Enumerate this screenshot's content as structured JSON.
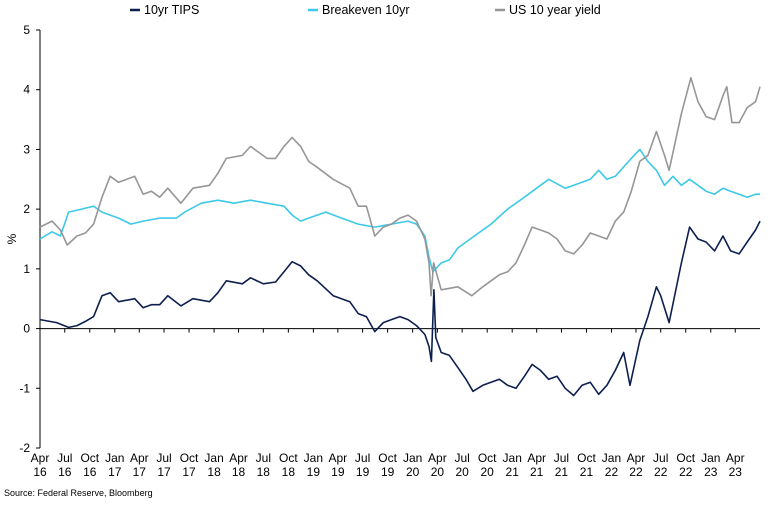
{
  "source": "Source: Federal Reserve, Bloomberg",
  "chart_data": {
    "type": "line",
    "ylabel": "%",
    "ylim": [
      -2,
      5
    ],
    "yticks": [
      -2,
      -1,
      0,
      1,
      2,
      3,
      4,
      5
    ],
    "xlim": [
      "2016-04-01",
      "2023-07-01"
    ],
    "grid": false,
    "legend": "top",
    "x_ticks": [
      {
        "month": "Apr",
        "year": "16",
        "date": "2016-04-01"
      },
      {
        "month": "Jul",
        "year": "16",
        "date": "2016-07-01"
      },
      {
        "month": "Oct",
        "year": "16",
        "date": "2016-10-01"
      },
      {
        "month": "Jan",
        "year": "17",
        "date": "2017-01-01"
      },
      {
        "month": "Apr",
        "year": "17",
        "date": "2017-04-01"
      },
      {
        "month": "Jul",
        "year": "17",
        "date": "2017-07-01"
      },
      {
        "month": "Oct",
        "year": "17",
        "date": "2017-10-01"
      },
      {
        "month": "Jan",
        "year": "18",
        "date": "2018-01-01"
      },
      {
        "month": "Apr",
        "year": "18",
        "date": "2018-04-01"
      },
      {
        "month": "Jul",
        "year": "18",
        "date": "2018-07-01"
      },
      {
        "month": "Oct",
        "year": "18",
        "date": "2018-10-01"
      },
      {
        "month": "Jan",
        "year": "19",
        "date": "2019-01-01"
      },
      {
        "month": "Apr",
        "year": "19",
        "date": "2019-04-01"
      },
      {
        "month": "Jul",
        "year": "19",
        "date": "2019-07-01"
      },
      {
        "month": "Oct",
        "year": "19",
        "date": "2019-10-01"
      },
      {
        "month": "Jan",
        "year": "20",
        "date": "2020-01-01"
      },
      {
        "month": "Apr",
        "year": "20",
        "date": "2020-04-01"
      },
      {
        "month": "Jul",
        "year": "20",
        "date": "2020-07-01"
      },
      {
        "month": "Oct",
        "year": "20",
        "date": "2020-10-01"
      },
      {
        "month": "Jan",
        "year": "21",
        "date": "2021-01-01"
      },
      {
        "month": "Apr",
        "year": "21",
        "date": "2021-04-01"
      },
      {
        "month": "Jul",
        "year": "21",
        "date": "2021-07-01"
      },
      {
        "month": "Oct",
        "year": "21",
        "date": "2021-10-01"
      },
      {
        "month": "Jan",
        "year": "22",
        "date": "2022-01-01"
      },
      {
        "month": "Apr",
        "year": "22",
        "date": "2022-04-01"
      },
      {
        "month": "Jul",
        "year": "22",
        "date": "2022-07-01"
      },
      {
        "month": "Oct",
        "year": "22",
        "date": "2022-10-01"
      },
      {
        "month": "Jan",
        "year": "23",
        "date": "2023-01-01"
      },
      {
        "month": "Apr",
        "year": "23",
        "date": "2023-04-01"
      }
    ],
    "series": [
      {
        "name": "10yr TIPS",
        "color": "#0d1f4f",
        "points": [
          [
            "2016-04-01",
            0.15
          ],
          [
            "2016-06-01",
            0.1
          ],
          [
            "2016-07-15",
            0.02
          ],
          [
            "2016-08-15",
            0.05
          ],
          [
            "2016-09-15",
            0.12
          ],
          [
            "2016-10-15",
            0.2
          ],
          [
            "2016-11-15",
            0.55
          ],
          [
            "2016-12-15",
            0.6
          ],
          [
            "2017-01-15",
            0.45
          ],
          [
            "2017-03-15",
            0.5
          ],
          [
            "2017-04-15",
            0.35
          ],
          [
            "2017-05-15",
            0.4
          ],
          [
            "2017-06-15",
            0.4
          ],
          [
            "2017-07-15",
            0.55
          ],
          [
            "2017-09-01",
            0.38
          ],
          [
            "2017-10-15",
            0.5
          ],
          [
            "2017-12-15",
            0.45
          ],
          [
            "2018-01-15",
            0.6
          ],
          [
            "2018-02-15",
            0.8
          ],
          [
            "2018-04-15",
            0.75
          ],
          [
            "2018-05-15",
            0.85
          ],
          [
            "2018-07-01",
            0.75
          ],
          [
            "2018-08-15",
            0.78
          ],
          [
            "2018-09-15",
            0.95
          ],
          [
            "2018-10-15",
            1.12
          ],
          [
            "2018-11-15",
            1.05
          ],
          [
            "2018-12-15",
            0.9
          ],
          [
            "2019-01-15",
            0.8
          ],
          [
            "2019-03-15",
            0.55
          ],
          [
            "2019-05-15",
            0.45
          ],
          [
            "2019-06-15",
            0.25
          ],
          [
            "2019-07-15",
            0.2
          ],
          [
            "2019-08-15",
            -0.05
          ],
          [
            "2019-09-15",
            0.1
          ],
          [
            "2019-10-15",
            0.15
          ],
          [
            "2019-11-15",
            0.2
          ],
          [
            "2019-12-15",
            0.15
          ],
          [
            "2020-01-15",
            0.05
          ],
          [
            "2020-02-15",
            -0.1
          ],
          [
            "2020-03-01",
            -0.3
          ],
          [
            "2020-03-10",
            -0.55
          ],
          [
            "2020-03-19",
            0.65
          ],
          [
            "2020-03-26",
            -0.15
          ],
          [
            "2020-04-15",
            -0.4
          ],
          [
            "2020-05-15",
            -0.45
          ],
          [
            "2020-06-15",
            -0.65
          ],
          [
            "2020-07-15",
            -0.85
          ],
          [
            "2020-08-10",
            -1.05
          ],
          [
            "2020-09-15",
            -0.95
          ],
          [
            "2020-10-15",
            -0.9
          ],
          [
            "2020-11-15",
            -0.85
          ],
          [
            "2020-12-15",
            -0.95
          ],
          [
            "2021-01-15",
            -1.0
          ],
          [
            "2021-02-15",
            -0.8
          ],
          [
            "2021-03-15",
            -0.6
          ],
          [
            "2021-04-15",
            -0.7
          ],
          [
            "2021-05-15",
            -0.85
          ],
          [
            "2021-06-15",
            -0.8
          ],
          [
            "2021-07-15",
            -1.0
          ],
          [
            "2021-08-15",
            -1.12
          ],
          [
            "2021-09-15",
            -0.95
          ],
          [
            "2021-10-15",
            -0.9
          ],
          [
            "2021-11-15",
            -1.1
          ],
          [
            "2021-12-15",
            -0.95
          ],
          [
            "2022-01-15",
            -0.7
          ],
          [
            "2022-02-15",
            -0.4
          ],
          [
            "2022-03-10",
            -0.95
          ],
          [
            "2022-04-15",
            -0.2
          ],
          [
            "2022-05-15",
            0.2
          ],
          [
            "2022-06-15",
            0.7
          ],
          [
            "2022-07-01",
            0.55
          ],
          [
            "2022-08-01",
            0.1
          ],
          [
            "2022-09-15",
            1.1
          ],
          [
            "2022-10-15",
            1.7
          ],
          [
            "2022-11-15",
            1.5
          ],
          [
            "2022-12-15",
            1.45
          ],
          [
            "2023-01-15",
            1.3
          ],
          [
            "2023-02-15",
            1.55
          ],
          [
            "2023-03-15",
            1.3
          ],
          [
            "2023-04-15",
            1.25
          ],
          [
            "2023-05-15",
            1.45
          ],
          [
            "2023-06-15",
            1.65
          ],
          [
            "2023-07-01",
            1.8
          ]
        ]
      },
      {
        "name": "Breakeven 10yr",
        "color": "#3ec9e8",
        "points": [
          [
            "2016-04-01",
            1.5
          ],
          [
            "2016-05-15",
            1.62
          ],
          [
            "2016-06-15",
            1.55
          ],
          [
            "2016-07-15",
            1.95
          ],
          [
            "2016-09-01",
            2.0
          ],
          [
            "2016-10-15",
            2.05
          ],
          [
            "2016-11-15",
            1.95
          ],
          [
            "2016-12-15",
            1.9
          ],
          [
            "2017-01-15",
            1.85
          ],
          [
            "2017-03-01",
            1.75
          ],
          [
            "2017-04-15",
            1.8
          ],
          [
            "2017-06-15",
            1.85
          ],
          [
            "2017-08-15",
            1.85
          ],
          [
            "2017-09-15",
            1.95
          ],
          [
            "2017-11-15",
            2.1
          ],
          [
            "2018-01-15",
            2.15
          ],
          [
            "2018-03-15",
            2.1
          ],
          [
            "2018-05-15",
            2.15
          ],
          [
            "2018-07-15",
            2.1
          ],
          [
            "2018-09-15",
            2.05
          ],
          [
            "2018-10-15",
            1.9
          ],
          [
            "2018-11-15",
            1.8
          ],
          [
            "2018-12-15",
            1.85
          ],
          [
            "2019-02-15",
            1.95
          ],
          [
            "2019-04-15",
            1.85
          ],
          [
            "2019-06-15",
            1.75
          ],
          [
            "2019-08-15",
            1.7
          ],
          [
            "2019-10-15",
            1.75
          ],
          [
            "2019-12-15",
            1.8
          ],
          [
            "2020-01-15",
            1.75
          ],
          [
            "2020-02-15",
            1.55
          ],
          [
            "2020-03-01",
            1.2
          ],
          [
            "2020-03-15",
            0.95
          ],
          [
            "2020-04-15",
            1.1
          ],
          [
            "2020-05-15",
            1.15
          ],
          [
            "2020-06-15",
            1.35
          ],
          [
            "2020-08-15",
            1.55
          ],
          [
            "2020-10-15",
            1.75
          ],
          [
            "2020-12-15",
            2.0
          ],
          [
            "2021-02-15",
            2.2
          ],
          [
            "2021-04-15",
            2.4
          ],
          [
            "2021-05-15",
            2.5
          ],
          [
            "2021-07-15",
            2.35
          ],
          [
            "2021-08-15",
            2.4
          ],
          [
            "2021-10-15",
            2.5
          ],
          [
            "2021-11-15",
            2.65
          ],
          [
            "2021-12-15",
            2.5
          ],
          [
            "2022-01-15",
            2.55
          ],
          [
            "2022-03-15",
            2.85
          ],
          [
            "2022-04-15",
            3.0
          ],
          [
            "2022-05-15",
            2.8
          ],
          [
            "2022-06-15",
            2.65
          ],
          [
            "2022-07-15",
            2.4
          ],
          [
            "2022-08-15",
            2.55
          ],
          [
            "2022-09-15",
            2.4
          ],
          [
            "2022-10-15",
            2.5
          ],
          [
            "2022-11-15",
            2.4
          ],
          [
            "2022-12-15",
            2.3
          ],
          [
            "2023-01-15",
            2.25
          ],
          [
            "2023-02-15",
            2.35
          ],
          [
            "2023-03-15",
            2.3
          ],
          [
            "2023-04-15",
            2.25
          ],
          [
            "2023-05-15",
            2.2
          ],
          [
            "2023-06-15",
            2.25
          ],
          [
            "2023-07-01",
            2.25
          ]
        ]
      },
      {
        "name": "US 10 year yield",
        "color": "#969696",
        "points": [
          [
            "2016-04-01",
            1.7
          ],
          [
            "2016-05-15",
            1.8
          ],
          [
            "2016-06-15",
            1.65
          ],
          [
            "2016-07-10",
            1.4
          ],
          [
            "2016-08-15",
            1.55
          ],
          [
            "2016-09-15",
            1.6
          ],
          [
            "2016-10-15",
            1.75
          ],
          [
            "2016-11-15",
            2.2
          ],
          [
            "2016-12-15",
            2.55
          ],
          [
            "2017-01-15",
            2.45
          ],
          [
            "2017-03-15",
            2.55
          ],
          [
            "2017-04-15",
            2.25
          ],
          [
            "2017-05-15",
            2.3
          ],
          [
            "2017-06-15",
            2.2
          ],
          [
            "2017-07-15",
            2.35
          ],
          [
            "2017-09-01",
            2.1
          ],
          [
            "2017-10-15",
            2.35
          ],
          [
            "2017-12-15",
            2.4
          ],
          [
            "2018-01-15",
            2.6
          ],
          [
            "2018-02-15",
            2.85
          ],
          [
            "2018-04-15",
            2.9
          ],
          [
            "2018-05-15",
            3.05
          ],
          [
            "2018-07-15",
            2.85
          ],
          [
            "2018-08-15",
            2.85
          ],
          [
            "2018-09-15",
            3.05
          ],
          [
            "2018-10-15",
            3.2
          ],
          [
            "2018-11-15",
            3.05
          ],
          [
            "2018-12-15",
            2.8
          ],
          [
            "2019-01-15",
            2.7
          ],
          [
            "2019-03-15",
            2.5
          ],
          [
            "2019-05-15",
            2.35
          ],
          [
            "2019-06-15",
            2.05
          ],
          [
            "2019-07-15",
            2.05
          ],
          [
            "2019-08-15",
            1.55
          ],
          [
            "2019-09-15",
            1.7
          ],
          [
            "2019-10-15",
            1.75
          ],
          [
            "2019-11-15",
            1.85
          ],
          [
            "2019-12-15",
            1.9
          ],
          [
            "2020-01-15",
            1.8
          ],
          [
            "2020-02-15",
            1.5
          ],
          [
            "2020-03-01",
            1.1
          ],
          [
            "2020-03-09",
            0.55
          ],
          [
            "2020-03-18",
            1.1
          ],
          [
            "2020-04-15",
            0.65
          ],
          [
            "2020-06-15",
            0.7
          ],
          [
            "2020-08-05",
            0.55
          ],
          [
            "2020-09-15",
            0.7
          ],
          [
            "2020-10-15",
            0.8
          ],
          [
            "2020-11-15",
            0.9
          ],
          [
            "2020-12-15",
            0.95
          ],
          [
            "2021-01-15",
            1.1
          ],
          [
            "2021-02-15",
            1.4
          ],
          [
            "2021-03-15",
            1.7
          ],
          [
            "2021-04-15",
            1.65
          ],
          [
            "2021-05-15",
            1.6
          ],
          [
            "2021-06-15",
            1.5
          ],
          [
            "2021-07-15",
            1.3
          ],
          [
            "2021-08-15",
            1.25
          ],
          [
            "2021-09-15",
            1.4
          ],
          [
            "2021-10-15",
            1.6
          ],
          [
            "2021-11-15",
            1.55
          ],
          [
            "2021-12-15",
            1.5
          ],
          [
            "2022-01-15",
            1.8
          ],
          [
            "2022-02-15",
            1.95
          ],
          [
            "2022-03-15",
            2.3
          ],
          [
            "2022-04-15",
            2.8
          ],
          [
            "2022-05-15",
            2.9
          ],
          [
            "2022-06-15",
            3.3
          ],
          [
            "2022-07-15",
            2.9
          ],
          [
            "2022-08-01",
            2.65
          ],
          [
            "2022-08-15",
            2.95
          ],
          [
            "2022-09-15",
            3.6
          ],
          [
            "2022-10-20",
            4.2
          ],
          [
            "2022-11-15",
            3.8
          ],
          [
            "2022-12-15",
            3.55
          ],
          [
            "2023-01-15",
            3.5
          ],
          [
            "2023-02-15",
            3.9
          ],
          [
            "2023-03-01",
            4.05
          ],
          [
            "2023-03-20",
            3.45
          ],
          [
            "2023-04-15",
            3.45
          ],
          [
            "2023-05-15",
            3.7
          ],
          [
            "2023-06-15",
            3.8
          ],
          [
            "2023-07-01",
            4.05
          ]
        ]
      }
    ]
  }
}
